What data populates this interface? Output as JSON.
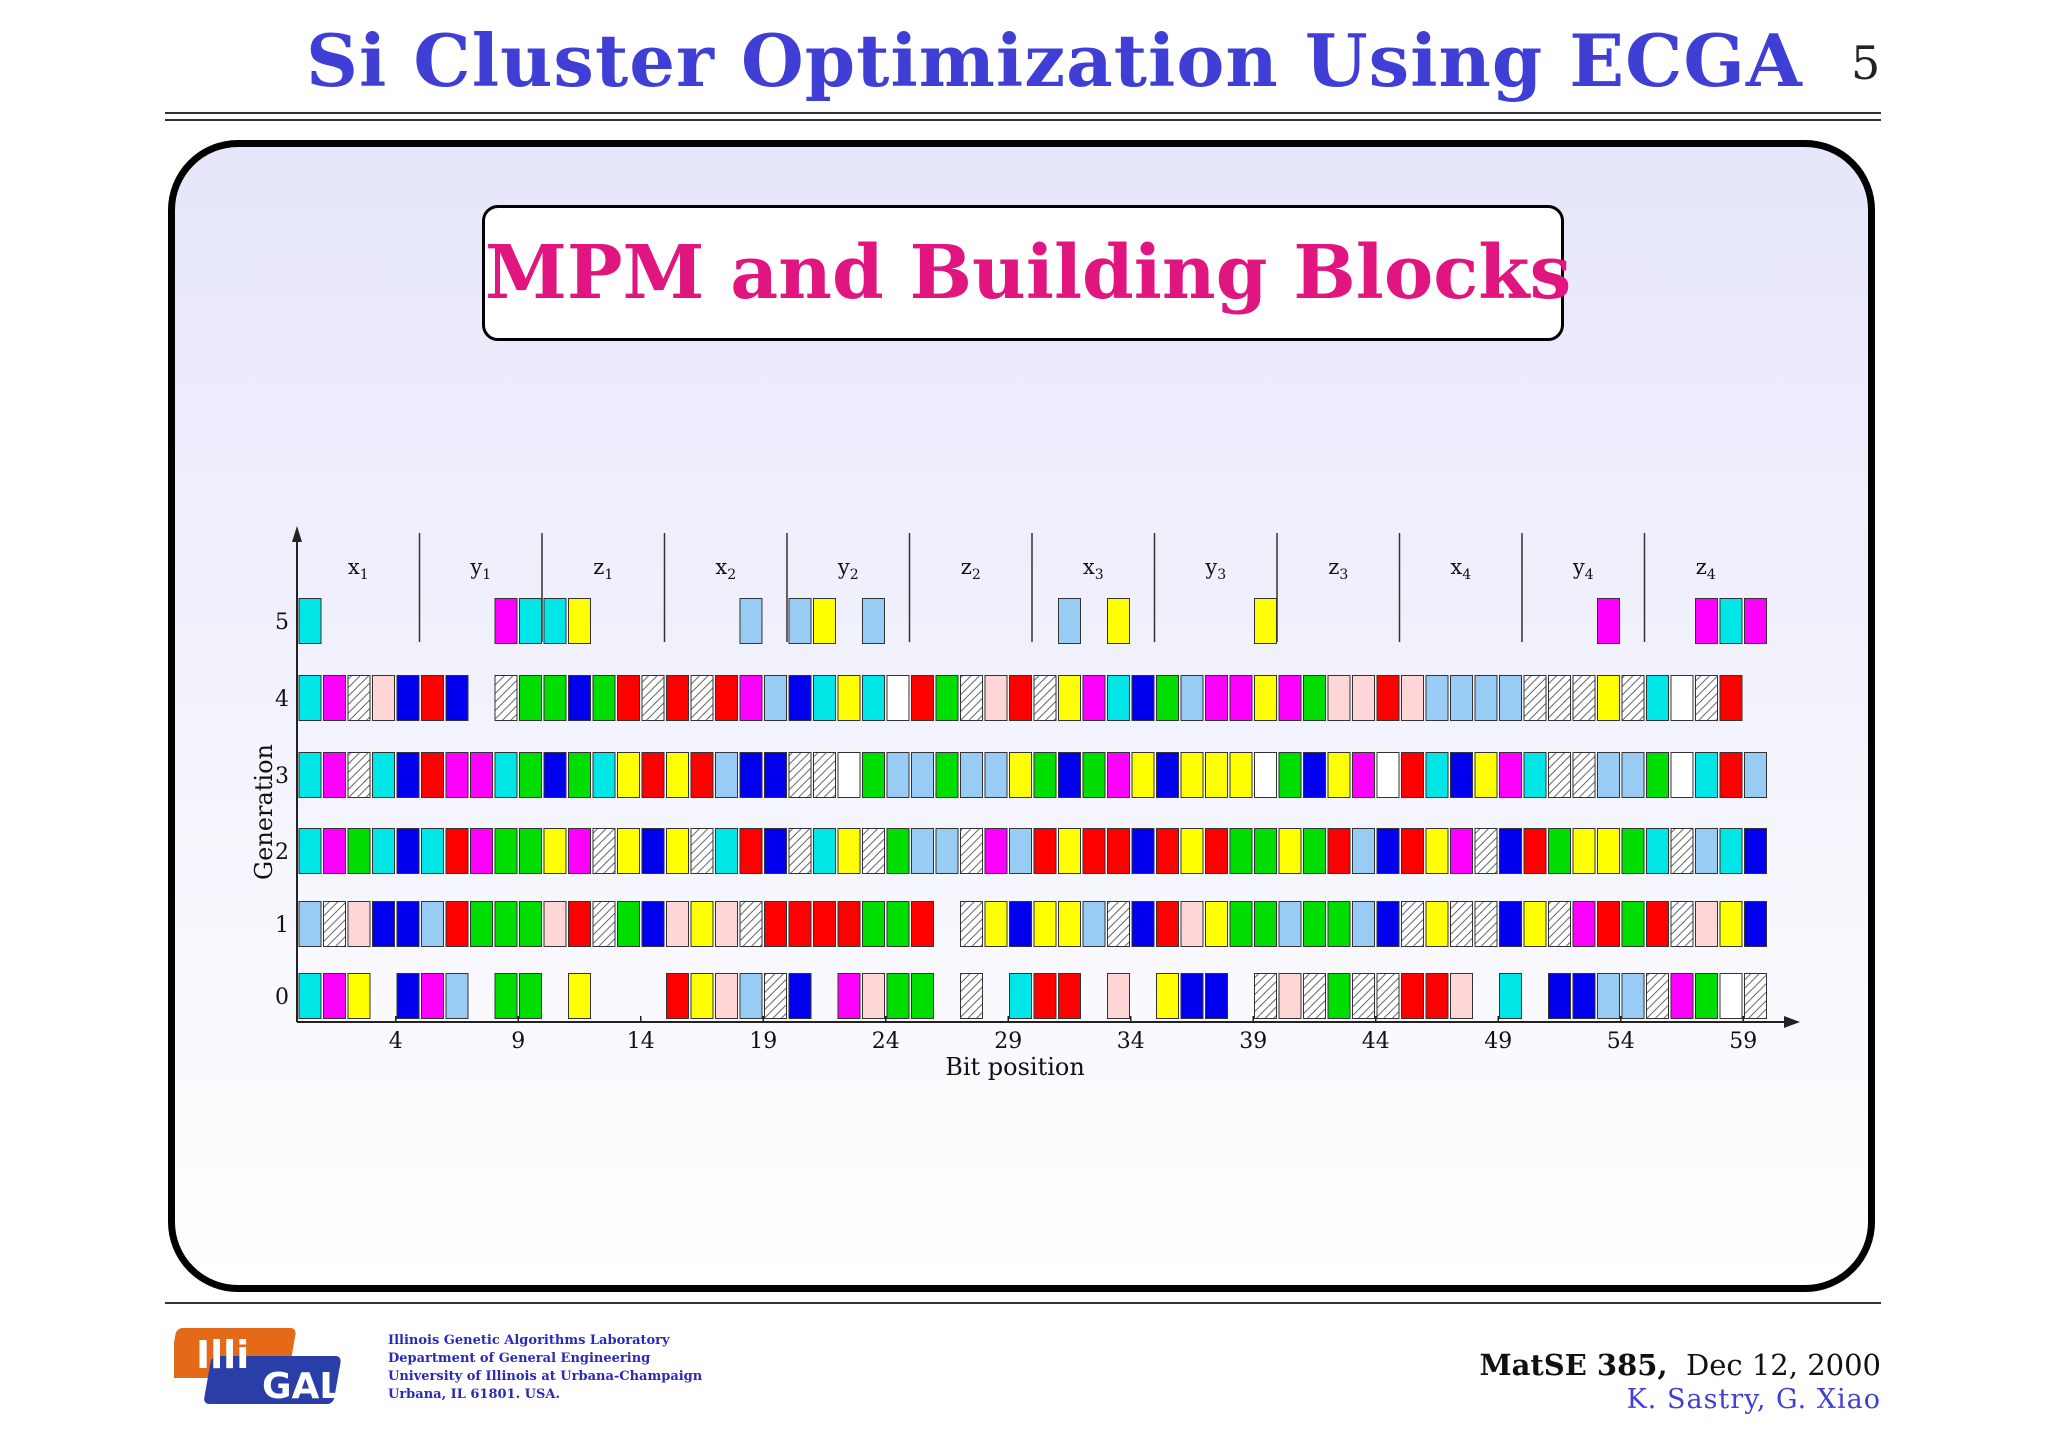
{
  "slide": {
    "title": "Si Cluster Optimization Using ECGA",
    "page_number": "5",
    "subtitle": "MPM and Building Blocks"
  },
  "footer": {
    "lab_lines": [
      "Illinois Genetic Algorithms Laboratory",
      "Department of General Engineering",
      "University of Illinois at Urbana-Champaign",
      "Urbana, IL 61801. USA."
    ],
    "logo_text_top": "Illi",
    "logo_text_bottom": "GAL",
    "course": "MatSE 385,",
    "date": "Dec 12, 2000",
    "authors": "K. Sastry, G. Xiao"
  },
  "chart_data": {
    "type": "heatmap",
    "xlabel": "Bit position",
    "ylabel": "Generation",
    "x_ticks": [
      4,
      9,
      14,
      19,
      24,
      29,
      34,
      39,
      44,
      49,
      54,
      59
    ],
    "y_ticks": [
      0,
      1,
      2,
      3,
      4,
      5
    ],
    "groups": [
      {
        "label": "x",
        "sub": "1"
      },
      {
        "label": "y",
        "sub": "1"
      },
      {
        "label": "z",
        "sub": "1"
      },
      {
        "label": "x",
        "sub": "2"
      },
      {
        "label": "y",
        "sub": "2"
      },
      {
        "label": "z",
        "sub": "2"
      },
      {
        "label": "x",
        "sub": "3"
      },
      {
        "label": "y",
        "sub": "3"
      },
      {
        "label": "z",
        "sub": "3"
      },
      {
        "label": "x",
        "sub": "4"
      },
      {
        "label": "y",
        "sub": "4"
      },
      {
        "label": "z",
        "sub": "4"
      }
    ],
    "color_legend": {
      "C": "#00e5e5",
      "M": "#ff00ff",
      "H": "hatched",
      "P": "#ffd6d6",
      "B": "#0000ee",
      "R": "#ff0000",
      "G": "#00dd00",
      "L": "#99ccf5",
      "Y": "#ffff00",
      "W": "#ffffff",
      ".": "empty"
    },
    "rows": {
      "5": "C.......MCCY......L.LY.L.......L.Y.....Y.............M...MCM.",
      "4": "CMHPBRB.HGGBGRHRHRMLBCYCWRGHPRHYMCBGLMMYMGPPRPLLLLHHHYHCWHR",
      "3": "CMHCBRMMCGBGCYRYRLBBHHWGLLGLLYGBGMYBYYYWGBYMWRCBYMCHHLLGWCRLR",
      "2": "CMGCBCRMGGYMHYBYHCRBHCYHGLLHMLRYRRBRYRGGYGRLBRYMHBRGYYGCHLCB",
      "1": "LHPBBLRGGGPRHGBPYPHRRRRGGR.HYBYYLHBRPYGGLGGLBHYHHBYHMRGRHPYB",
      "0": "CMY.BML.GG.Y...RYPLHB.MPGG.H.CRR.P.YBB.HPHGHHRRP.C.BBLLHMGWHWR"
    }
  }
}
